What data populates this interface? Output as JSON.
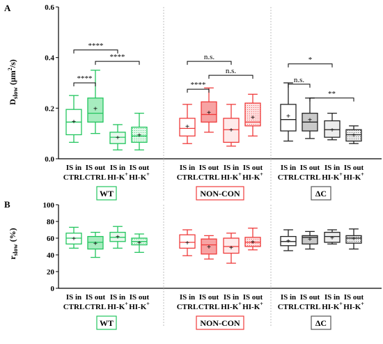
{
  "panels": [
    {
      "letter": "A",
      "ylabel": "Dslow (µm²/s)",
      "ylabel_main": "D",
      "ylabel_sub": "slow",
      "ylabel_unit": " (μm",
      "ylabel_sup": "2",
      "ylabel_tail": "/s)",
      "yticks": [
        "0.0",
        "0.2",
        "0.4",
        "0.6"
      ],
      "significance": [
        {
          "text": "****"
        },
        {
          "text": "****"
        },
        {
          "text": "****"
        },
        {
          "text": "n.s."
        },
        {
          "text": "n.s."
        },
        {
          "text": "****"
        },
        {
          "text": "*"
        },
        {
          "text": "n.s."
        },
        {
          "text": "**"
        }
      ]
    },
    {
      "letter": "B",
      "ylabel": "rslow (%)",
      "ylabel_main": "r",
      "ylabel_sub": "slow",
      "ylabel_tail": " (%)",
      "yticks": [
        "0",
        "20",
        "40",
        "60",
        "80",
        "100"
      ]
    }
  ],
  "xtick_labels": [
    {
      "line1": "IS in",
      "line2": "CTRL"
    },
    {
      "line1": "IS out",
      "line2": "CTRL"
    },
    {
      "line1": "IS in",
      "line2": "HI-K"
    },
    {
      "line1": "IS out",
      "line2": "HI-K"
    }
  ],
  "xtick_sup": "+",
  "groups": [
    {
      "name": "WT",
      "color": "#22c55e"
    },
    {
      "name": "NON-CON",
      "color": "#ef3b3b"
    },
    {
      "name": "ΔC",
      "color": "#222222"
    }
  ],
  "chart_data": [
    {
      "type": "box",
      "panel": "A",
      "ylabel": "Dslow (µm²/s)",
      "ylim": [
        0,
        0.6
      ],
      "categories": [
        "IS in CTRL",
        "IS out CTRL",
        "IS in HI-K+",
        "IS out HI-K+"
      ],
      "series": [
        {
          "name": "WT",
          "boxes": [
            {
              "min": 0.065,
              "q1": 0.095,
              "median": 0.145,
              "q3": 0.195,
              "max": 0.25,
              "mean": 0.148,
              "fill": "white"
            },
            {
              "min": 0.1,
              "q1": 0.145,
              "median": 0.18,
              "q3": 0.24,
              "max": 0.35,
              "mean": 0.2,
              "fill": "solid"
            },
            {
              "min": 0.035,
              "q1": 0.06,
              "median": 0.085,
              "q3": 0.105,
              "max": 0.135,
              "mean": 0.085,
              "fill": "light"
            },
            {
              "min": 0.035,
              "q1": 0.065,
              "median": 0.09,
              "q3": 0.125,
              "max": 0.18,
              "mean": 0.095,
              "fill": "dotted"
            }
          ]
        },
        {
          "name": "NON-CON",
          "boxes": [
            {
              "min": 0.06,
              "q1": 0.09,
              "median": 0.12,
              "q3": 0.16,
              "max": 0.215,
              "mean": 0.13,
              "fill": "white"
            },
            {
              "min": 0.105,
              "q1": 0.145,
              "median": 0.175,
              "q3": 0.225,
              "max": 0.28,
              "mean": 0.185,
              "fill": "solid"
            },
            {
              "min": 0.05,
              "q1": 0.065,
              "median": 0.115,
              "q3": 0.16,
              "max": 0.215,
              "mean": 0.115,
              "fill": "light"
            },
            {
              "min": 0.09,
              "q1": 0.13,
              "median": 0.145,
              "q3": 0.22,
              "max": 0.255,
              "mean": 0.165,
              "fill": "dotted"
            }
          ]
        },
        {
          "name": "ΔC",
          "boxes": [
            {
              "min": 0.07,
              "q1": 0.11,
              "median": 0.155,
              "q3": 0.215,
              "max": 0.3,
              "mean": 0.17,
              "fill": "white"
            },
            {
              "min": 0.08,
              "q1": 0.11,
              "median": 0.145,
              "q3": 0.18,
              "max": 0.24,
              "mean": 0.155,
              "fill": "solid"
            },
            {
              "min": 0.075,
              "q1": 0.085,
              "median": 0.115,
              "q3": 0.15,
              "max": 0.18,
              "mean": 0.115,
              "fill": "light"
            },
            {
              "min": 0.06,
              "q1": 0.07,
              "median": 0.095,
              "q3": 0.115,
              "max": 0.13,
              "mean": 0.095,
              "fill": "dotted"
            }
          ]
        }
      ],
      "comparisons": [
        {
          "group": "WT",
          "from": "IS in CTRL",
          "to": "IS out CTRL",
          "label": "****"
        },
        {
          "group": "WT",
          "from": "IS in CTRL",
          "to": "IS in HI-K+",
          "label": "****"
        },
        {
          "group": "WT",
          "from": "IS out CTRL",
          "to": "IS out HI-K+",
          "label": "****"
        },
        {
          "group": "NON-CON",
          "from": "IS in CTRL",
          "to": "IS in HI-K+",
          "label": "n.s."
        },
        {
          "group": "NON-CON",
          "from": "IS out CTRL",
          "to": "IS out HI-K+",
          "label": "n.s."
        },
        {
          "group": "NON-CON",
          "from": "IS in CTRL",
          "to": "IS out CTRL",
          "label": "****"
        },
        {
          "group": "ΔC",
          "from": "IS in CTRL",
          "to": "IS in HI-K+",
          "label": "*"
        },
        {
          "group": "ΔC",
          "from": "IS in CTRL",
          "to": "IS out CTRL",
          "label": "n.s."
        },
        {
          "group": "ΔC",
          "from": "IS out CTRL",
          "to": "IS out HI-K+",
          "label": "**"
        }
      ]
    },
    {
      "type": "box",
      "panel": "B",
      "ylabel": "rslow (%)",
      "ylim": [
        0,
        100
      ],
      "categories": [
        "IS in CTRL",
        "IS out CTRL",
        "IS in HI-K+",
        "IS out HI-K+"
      ],
      "series": [
        {
          "name": "WT",
          "boxes": [
            {
              "min": 48,
              "q1": 53,
              "median": 60,
              "q3": 66,
              "max": 73,
              "mean": 60,
              "fill": "white"
            },
            {
              "min": 37,
              "q1": 47,
              "median": 55,
              "q3": 62,
              "max": 67,
              "mean": 54,
              "fill": "solid"
            },
            {
              "min": 48,
              "q1": 56,
              "median": 61,
              "q3": 67,
              "max": 74,
              "mean": 62,
              "fill": "light"
            },
            {
              "min": 43,
              "q1": 52,
              "median": 56,
              "q3": 60,
              "max": 65,
              "mean": 55,
              "fill": "dotted"
            }
          ]
        },
        {
          "name": "NON-CON",
          "boxes": [
            {
              "min": 39,
              "q1": 48,
              "median": 55,
              "q3": 64,
              "max": 70,
              "mean": 55,
              "fill": "white"
            },
            {
              "min": 35,
              "q1": 41,
              "median": 52,
              "q3": 59,
              "max": 63,
              "mean": 50,
              "fill": "solid"
            },
            {
              "min": 30,
              "q1": 42,
              "median": 50,
              "q3": 60,
              "max": 66,
              "mean": 49,
              "fill": "light"
            },
            {
              "min": 46,
              "q1": 50,
              "median": 55,
              "q3": 61,
              "max": 72,
              "mean": 56,
              "fill": "dotted"
            }
          ]
        },
        {
          "name": "ΔC",
          "boxes": [
            {
              "min": 45,
              "q1": 51,
              "median": 56,
              "q3": 62,
              "max": 70,
              "mean": 57,
              "fill": "white"
            },
            {
              "min": 47,
              "q1": 53,
              "median": 61,
              "q3": 63,
              "max": 68,
              "mean": 59,
              "fill": "solid"
            },
            {
              "min": 53,
              "q1": 55,
              "median": 62,
              "q3": 67,
              "max": 70,
              "mean": 61,
              "fill": "light"
            },
            {
              "min": 47,
              "q1": 54,
              "median": 60,
              "q3": 63,
              "max": 71,
              "mean": 60,
              "fill": "dotted"
            }
          ]
        }
      ]
    }
  ]
}
